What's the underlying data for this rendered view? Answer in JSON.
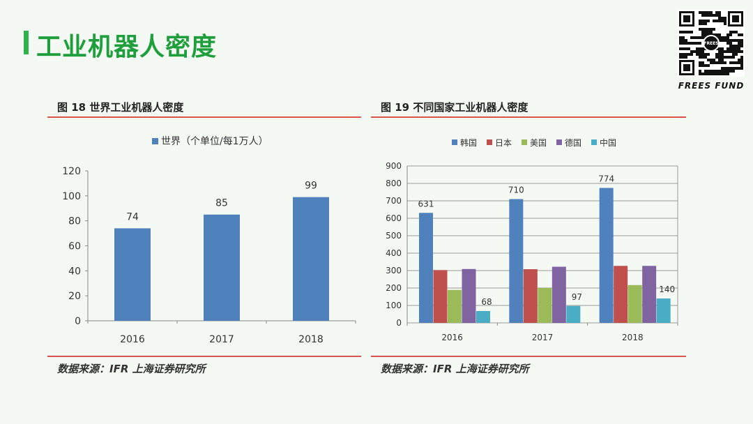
{
  "page": {
    "title": "工业机器人密度"
  },
  "brand": {
    "name": "FREES FUND",
    "qr_center": "FREES"
  },
  "figures": [
    {
      "caption": "图 18 世界工业机器人密度",
      "source": "数据来源：IFR 上海证券研究所"
    },
    {
      "caption": "图 19 不同国家工业机器人密度",
      "source": "数据来源：IFR 上海证券研究所"
    }
  ],
  "colors": {
    "accent": "#1f9e3c",
    "bar_world": "#4f81bd",
    "series": [
      "#4f81bd",
      "#c0504d",
      "#9bbb59",
      "#8064a2",
      "#4bacc6"
    ]
  },
  "chart_data": [
    {
      "type": "bar",
      "title": "",
      "legend": "世界（个单位/每1万人）",
      "categories": [
        "2016",
        "2017",
        "2018"
      ],
      "values": [
        74,
        85,
        99
      ],
      "ylim": [
        0,
        120
      ],
      "yticks": [
        0,
        20,
        40,
        60,
        80,
        100,
        120
      ],
      "xlabel": "",
      "ylabel": "",
      "legend_position": "top"
    },
    {
      "type": "bar",
      "title": "",
      "categories": [
        "2016",
        "2017",
        "2018"
      ],
      "series": [
        {
          "name": "韩国",
          "values": [
            631,
            710,
            774
          ],
          "labeled": true
        },
        {
          "name": "日本",
          "values": [
            303,
            308,
            327
          ],
          "labeled": false
        },
        {
          "name": "美国",
          "values": [
            189,
            200,
            217
          ],
          "labeled": false
        },
        {
          "name": "德国",
          "values": [
            309,
            322,
            327
          ],
          "labeled": false
        },
        {
          "name": "中国",
          "values": [
            68,
            97,
            140
          ],
          "labeled": true
        }
      ],
      "ylim": [
        0,
        900
      ],
      "yticks": [
        0,
        100,
        200,
        300,
        400,
        500,
        600,
        700,
        800,
        900
      ],
      "xlabel": "",
      "ylabel": "",
      "legend_position": "top"
    }
  ]
}
